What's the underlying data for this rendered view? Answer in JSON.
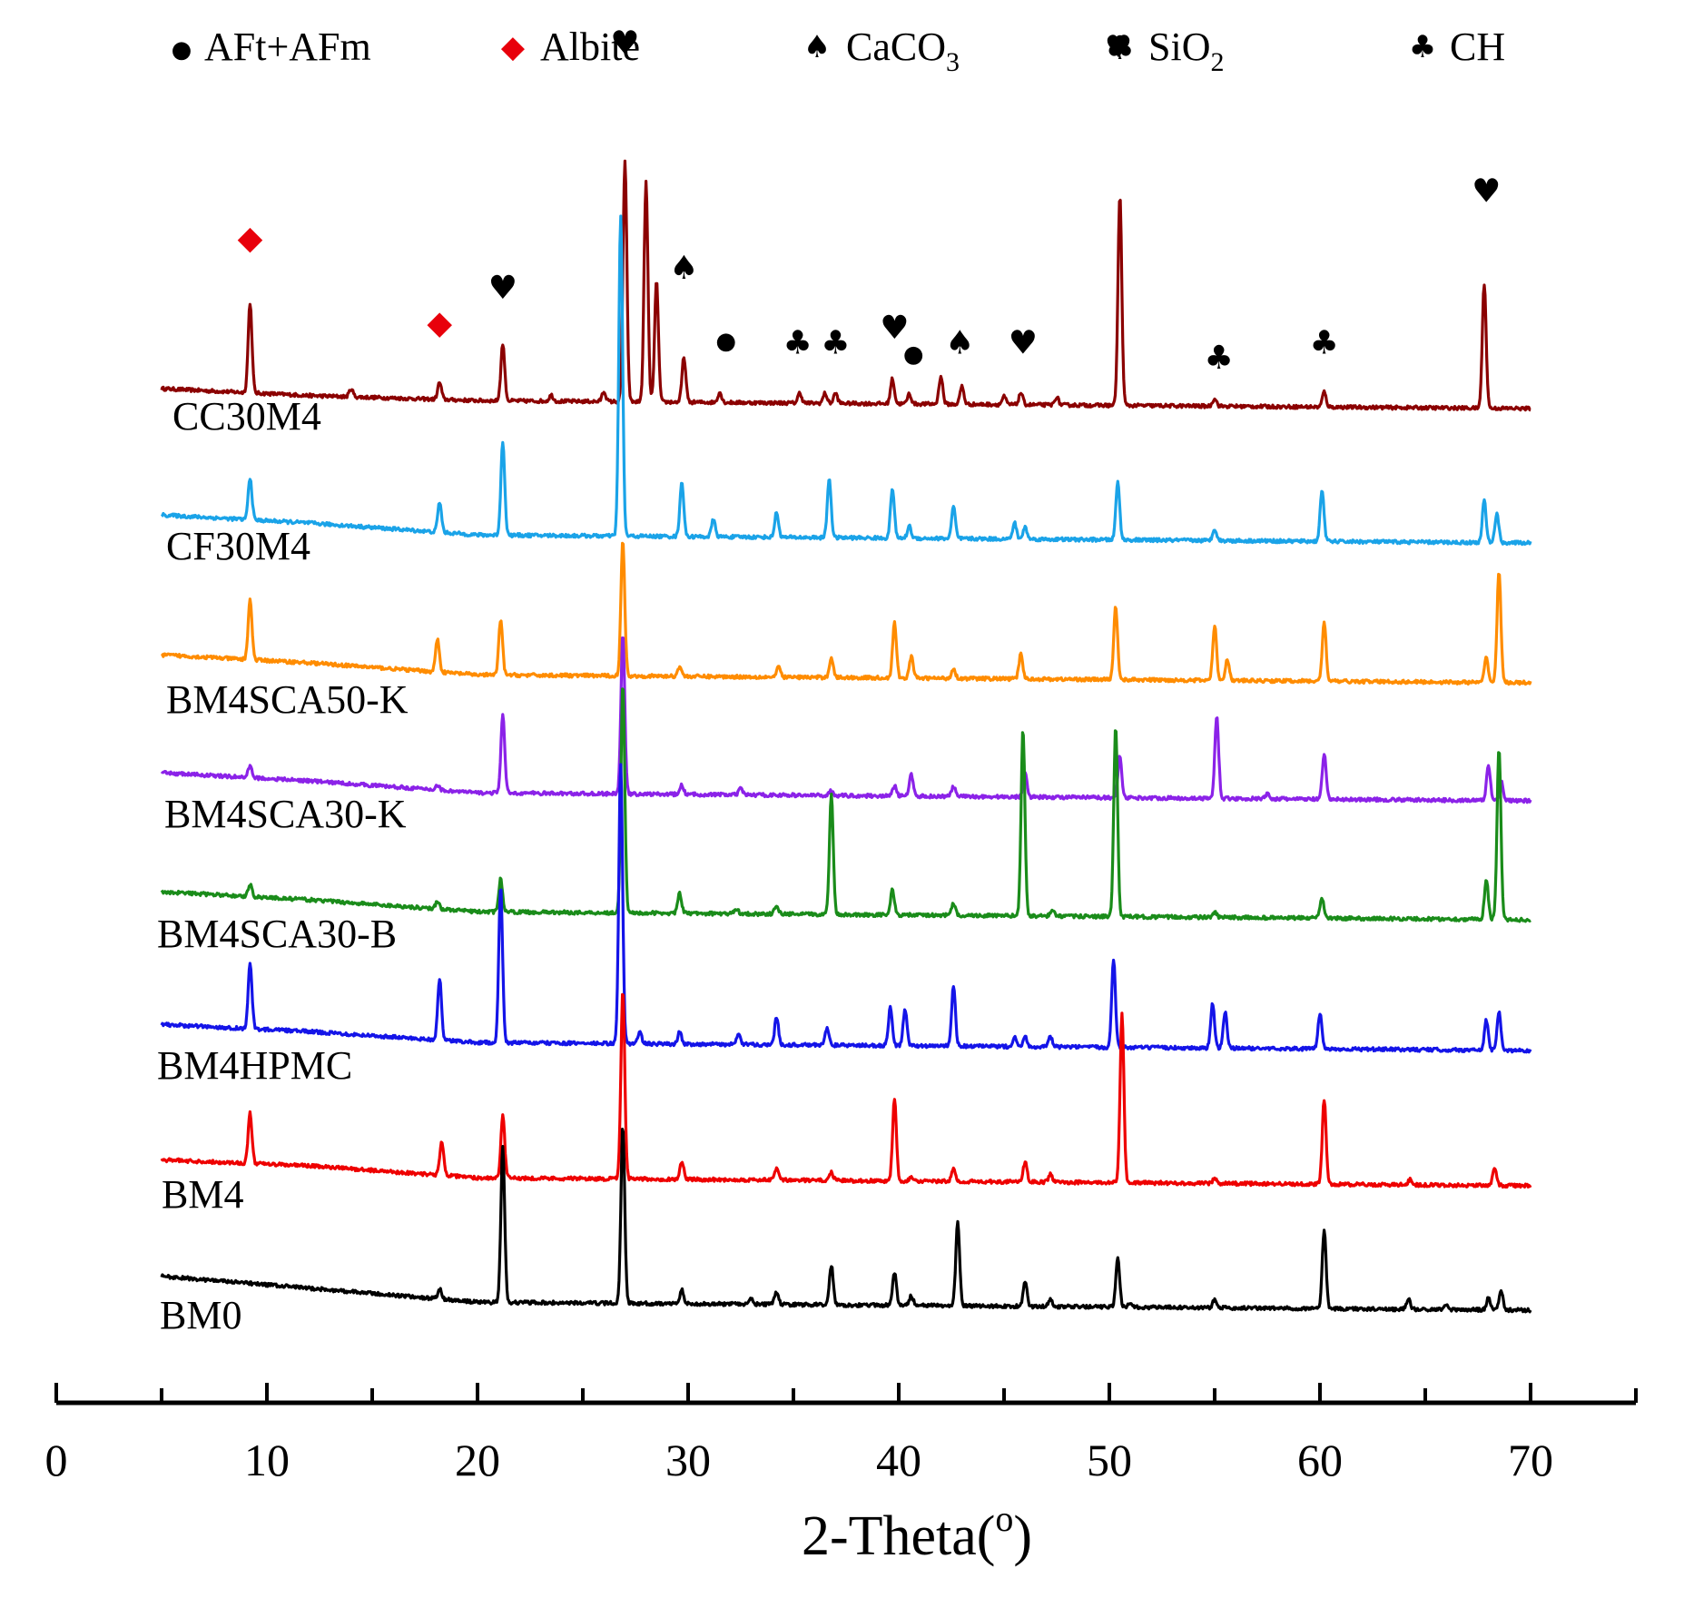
{
  "chart_data": {
    "type": "line",
    "xlabel": "2-Theta(o)",
    "xlabel_parts": {
      "text": "2-Theta(",
      "sup": "o",
      "close": ")"
    },
    "xlim": [
      0,
      75
    ],
    "xticks": [
      0,
      10,
      20,
      30,
      40,
      50,
      60,
      70
    ],
    "xtick_labels": [
      "0",
      "10",
      "20",
      "30",
      "40",
      "50",
      "60",
      "70"
    ],
    "x_range": [
      5,
      70
    ],
    "legend_position": "top",
    "legend": [
      {
        "symbol": "circle",
        "glyph": "●",
        "label": "AFt+AFm",
        "sub": "",
        "color": "#000000"
      },
      {
        "symbol": "diamond",
        "glyph": "◆",
        "label": "Albite",
        "sub": "",
        "color": "#e8000b"
      },
      {
        "symbol": "spade",
        "glyph": "♠",
        "label": "CaCO",
        "sub": "3",
        "color": "#000000"
      },
      {
        "symbol": "heart",
        "glyph": "♥",
        "label": "SiO",
        "sub": "2",
        "color": "#000000"
      },
      {
        "symbol": "club",
        "glyph": "♣",
        "label": "CH",
        "sub": "",
        "color": "#000000"
      }
    ],
    "series": [
      {
        "name": "CC30M4",
        "color": "#8b0000",
        "baseline": [
          [
            5,
            0.2
          ],
          [
            12,
            0.13
          ],
          [
            20,
            0.08
          ],
          [
            70,
            0
          ]
        ],
        "peaks": [
          [
            9.2,
            0.9
          ],
          [
            14,
            0.08
          ],
          [
            18.2,
            0.17
          ],
          [
            21.2,
            0.57
          ],
          [
            23.5,
            0.06
          ],
          [
            26,
            0.1
          ],
          [
            27,
            2.4
          ],
          [
            28,
            2.2
          ],
          [
            28.5,
            1.2
          ],
          [
            29.8,
            0.45
          ],
          [
            31.5,
            0.1
          ],
          [
            35.3,
            0.1
          ],
          [
            36.5,
            0.1
          ],
          [
            37,
            0.1
          ],
          [
            39.7,
            0.25
          ],
          [
            40.5,
            0.1
          ],
          [
            42,
            0.28
          ],
          [
            43,
            0.18
          ],
          [
            45,
            0.08
          ],
          [
            45.8,
            0.12
          ],
          [
            47.5,
            0.08
          ],
          [
            50.5,
            2.1
          ],
          [
            55,
            0.08
          ],
          [
            60.2,
            0.15
          ],
          [
            67.8,
            1.25
          ]
        ]
      },
      {
        "name": "CF30M4",
        "color": "#1aa3e8",
        "baseline": [
          [
            5,
            0.28
          ],
          [
            12,
            0.2
          ],
          [
            20,
            0.08
          ],
          [
            70,
            0
          ]
        ],
        "peaks": [
          [
            9.2,
            0.42
          ],
          [
            18.2,
            0.3
          ],
          [
            21.2,
            0.94
          ],
          [
            26.8,
            3.2
          ],
          [
            29.7,
            0.55
          ],
          [
            31.2,
            0.17
          ],
          [
            34.2,
            0.25
          ],
          [
            36.7,
            0.59
          ],
          [
            39.7,
            0.5
          ],
          [
            40.5,
            0.12
          ],
          [
            42.6,
            0.32
          ],
          [
            45.5,
            0.16
          ],
          [
            46,
            0.12
          ],
          [
            50.4,
            0.58
          ],
          [
            55,
            0.12
          ],
          [
            60.1,
            0.52
          ],
          [
            67.8,
            0.42
          ],
          [
            68.4,
            0.3
          ]
        ]
      },
      {
        "name": "BM4SCA50-K",
        "color": "#ff8c00",
        "baseline": [
          [
            5,
            0.28
          ],
          [
            12,
            0.2
          ],
          [
            20,
            0.08
          ],
          [
            70,
            0
          ]
        ],
        "peaks": [
          [
            9.2,
            0.6
          ],
          [
            18.1,
            0.33
          ],
          [
            21.1,
            0.55
          ],
          [
            26.9,
            1.35
          ],
          [
            29.6,
            0.1
          ],
          [
            34.3,
            0.1
          ],
          [
            36.8,
            0.2
          ],
          [
            39.8,
            0.55
          ],
          [
            40.6,
            0.22
          ],
          [
            42.6,
            0.1
          ],
          [
            45.8,
            0.25
          ],
          [
            50.3,
            0.73
          ],
          [
            55,
            0.55
          ],
          [
            55.6,
            0.22
          ],
          [
            60.2,
            0.6
          ],
          [
            67.9,
            0.25
          ],
          [
            68.5,
            1.12
          ]
        ]
      },
      {
        "name": "BM4SCA30-K",
        "color": "#8b22e8",
        "baseline": [
          [
            5,
            0.28
          ],
          [
            12,
            0.2
          ],
          [
            20,
            0.08
          ],
          [
            70,
            0
          ]
        ],
        "peaks": [
          [
            9.2,
            0.12
          ],
          [
            18.1,
            0.05
          ],
          [
            21.2,
            0.78
          ],
          [
            26.9,
            1.6
          ],
          [
            29.7,
            0.09
          ],
          [
            32.5,
            0.06
          ],
          [
            36.8,
            0.05
          ],
          [
            39.8,
            0.1
          ],
          [
            40.6,
            0.22
          ],
          [
            42.6,
            0.1
          ],
          [
            46,
            0.26
          ],
          [
            50.5,
            0.42
          ],
          [
            55.1,
            0.83
          ],
          [
            57.5,
            0.05
          ],
          [
            60.2,
            0.45
          ],
          [
            68,
            0.35
          ],
          [
            68.6,
            0.2
          ]
        ]
      },
      {
        "name": "BM4SCA30-B",
        "color": "#1a8c1a",
        "baseline": [
          [
            5,
            0.28
          ],
          [
            12,
            0.2
          ],
          [
            20,
            0.08
          ],
          [
            70,
            0
          ]
        ],
        "peaks": [
          [
            9.2,
            0.12
          ],
          [
            18.1,
            0.08
          ],
          [
            21.1,
            0.33
          ],
          [
            26.9,
            2.3
          ],
          [
            29.6,
            0.2
          ],
          [
            32.3,
            0.05
          ],
          [
            34.2,
            0.09
          ],
          [
            36.8,
            1.2
          ],
          [
            39.7,
            0.25
          ],
          [
            42.6,
            0.12
          ],
          [
            45.9,
            1.87
          ],
          [
            47.3,
            0.06
          ],
          [
            50.3,
            1.9
          ],
          [
            55,
            0.05
          ],
          [
            60.1,
            0.2
          ],
          [
            67.9,
            0.4
          ],
          [
            68.5,
            1.72
          ]
        ]
      },
      {
        "name": "BM4HPMC",
        "color": "#1414e8",
        "baseline": [
          [
            5,
            0.26
          ],
          [
            12,
            0.19
          ],
          [
            20,
            0.08
          ],
          [
            70,
            0
          ]
        ],
        "peaks": [
          [
            9.2,
            0.65
          ],
          [
            18.2,
            0.61
          ],
          [
            21.1,
            1.55
          ],
          [
            26.8,
            2.8
          ],
          [
            27.7,
            0.12
          ],
          [
            29.6,
            0.12
          ],
          [
            32.4,
            0.1
          ],
          [
            34.2,
            0.28
          ],
          [
            36.6,
            0.18
          ],
          [
            39.6,
            0.38
          ],
          [
            40.3,
            0.36
          ],
          [
            42.6,
            0.6
          ],
          [
            45.5,
            0.1
          ],
          [
            46,
            0.1
          ],
          [
            47.2,
            0.1
          ],
          [
            50.2,
            0.87
          ],
          [
            54.9,
            0.45
          ],
          [
            55.5,
            0.36
          ],
          [
            60,
            0.36
          ],
          [
            67.9,
            0.3
          ],
          [
            68.5,
            0.38
          ]
        ]
      },
      {
        "name": "BM4",
        "color": "#ee0000",
        "baseline": [
          [
            5,
            0.26
          ],
          [
            12,
            0.2
          ],
          [
            20,
            0.08
          ],
          [
            70,
            0
          ]
        ],
        "peaks": [
          [
            9.2,
            0.5
          ],
          [
            18.3,
            0.35
          ],
          [
            21.2,
            0.63
          ],
          [
            26.9,
            1.9
          ],
          [
            29.7,
            0.18
          ],
          [
            34.2,
            0.12
          ],
          [
            36.8,
            0.08
          ],
          [
            39.8,
            0.83
          ],
          [
            40.6,
            0.05
          ],
          [
            42.6,
            0.12
          ],
          [
            46,
            0.2
          ],
          [
            47.2,
            0.08
          ],
          [
            50.6,
            1.68
          ],
          [
            55,
            0.05
          ],
          [
            60.2,
            0.85
          ],
          [
            64.3,
            0.06
          ],
          [
            68.3,
            0.18
          ]
        ]
      },
      {
        "name": "BM0",
        "color": "#000000",
        "baseline": [
          [
            5,
            0.34
          ],
          [
            12,
            0.22
          ],
          [
            20,
            0.08
          ],
          [
            70,
            0
          ]
        ],
        "peaks": [
          [
            18.2,
            0.1
          ],
          [
            21.2,
            1.55
          ],
          [
            26.9,
            1.77
          ],
          [
            29.7,
            0.14
          ],
          [
            33,
            0.05
          ],
          [
            34.2,
            0.13
          ],
          [
            36.8,
            0.4
          ],
          [
            39.8,
            0.33
          ],
          [
            40.6,
            0.1
          ],
          [
            42.8,
            0.84
          ],
          [
            46,
            0.24
          ],
          [
            47.2,
            0.08
          ],
          [
            50.4,
            0.5
          ],
          [
            51,
            0.05
          ],
          [
            55,
            0.08
          ],
          [
            60.2,
            0.79
          ],
          [
            64.2,
            0.1
          ],
          [
            66,
            0.05
          ],
          [
            68,
            0.12
          ],
          [
            68.6,
            0.2
          ]
        ]
      }
    ],
    "annotations": [
      {
        "x": 9.2,
        "y": 1.6,
        "symbol": "diamond"
      },
      {
        "x": 18.2,
        "y": 0.75,
        "symbol": "diamond"
      },
      {
        "x": 21.2,
        "y": 1.1,
        "symbol": "heart"
      },
      {
        "x": 27,
        "y": 3.55,
        "symbol": "heart"
      },
      {
        "x": 29.8,
        "y": 1.3,
        "symbol": "spade"
      },
      {
        "x": 31.8,
        "y": 0.6,
        "symbol": "circle"
      },
      {
        "x": 35.2,
        "y": 0.55,
        "symbol": "club"
      },
      {
        "x": 37,
        "y": 0.55,
        "symbol": "club"
      },
      {
        "x": 39.8,
        "y": 0.7,
        "symbol": "heart"
      },
      {
        "x": 40.7,
        "y": 0.47,
        "symbol": "circle"
      },
      {
        "x": 42.9,
        "y": 0.55,
        "symbol": "spade"
      },
      {
        "x": 45.9,
        "y": 0.55,
        "symbol": "heart"
      },
      {
        "x": 50.5,
        "y": 3.5,
        "symbol": "club"
      },
      {
        "x": 55.2,
        "y": 0.4,
        "symbol": "club"
      },
      {
        "x": 60.2,
        "y": 0.55,
        "symbol": "club"
      },
      {
        "x": 67.9,
        "y": 2.07,
        "symbol": "heart"
      }
    ]
  }
}
